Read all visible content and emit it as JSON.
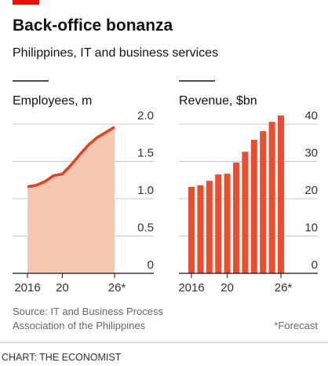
{
  "title": "Back-office bonanza",
  "subtitle": "Philippines, IT and business services",
  "source": "Source: IT and Business Process Association of the Philippines",
  "note": "*Forecast",
  "credit": "CHART: THE ECONOMIST",
  "chart_data": [
    {
      "type": "area",
      "title": "Employees, m",
      "x": [
        2016,
        2017,
        2018,
        2019,
        2020,
        2021,
        2022,
        2023,
        2024,
        2025,
        2026
      ],
      "values": [
        1.16,
        1.18,
        1.23,
        1.31,
        1.33,
        1.45,
        1.59,
        1.72,
        1.82,
        1.89,
        1.96
      ],
      "color": "#e3401f",
      "fill": "#f5c7b1",
      "xlim": [
        2016,
        2026
      ],
      "xticks": [
        {
          "value": 2016,
          "label": "2016"
        },
        {
          "value": 2020,
          "label": "20"
        },
        {
          "value": 2026,
          "label": "26*"
        }
      ],
      "ylim": [
        0,
        2
      ],
      "yticks": [
        0,
        0.5,
        {
          "value": 1,
          "label": "1.0"
        },
        1.5,
        {
          "value": 2,
          "label": "2.0"
        }
      ],
      "grid": true
    },
    {
      "type": "bar",
      "title": "Revenue, $bn",
      "x": [
        2016,
        2017,
        2018,
        2019,
        2020,
        2021,
        2022,
        2023,
        2024,
        2025,
        2026
      ],
      "values": [
        23.2,
        23.6,
        24.8,
        26.5,
        26.7,
        29.7,
        32.6,
        35.8,
        38.1,
        40.6,
        42.3
      ],
      "color": "#ee4b2f",
      "xlim": [
        2016,
        2026
      ],
      "xticks": [
        {
          "value": 2016,
          "label": "2016"
        },
        {
          "value": 2020,
          "label": "20"
        },
        {
          "value": 2026,
          "label": "26*"
        }
      ],
      "ylim": [
        0,
        40
      ],
      "yticks": [
        0,
        10,
        20,
        30,
        40
      ],
      "grid": true
    }
  ]
}
